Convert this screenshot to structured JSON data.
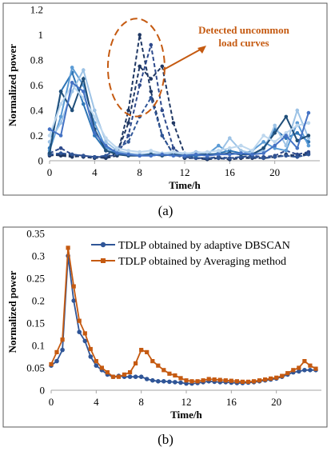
{
  "chart_data": [
    {
      "type": "line",
      "panel_caption": "(a)",
      "xlabel": "Time/h",
      "ylabel": "Normalized power",
      "xlim": [
        0,
        24
      ],
      "ylim": [
        0,
        1.2
      ],
      "xticks": [
        0,
        4,
        8,
        12,
        16,
        20
      ],
      "yticks": [
        0,
        0.2,
        0.4,
        0.6,
        0.8,
        1.0,
        1.2
      ],
      "ytick_labels": [
        "0",
        "0.2",
        "0.4",
        "0.6",
        "0.8",
        "1",
        "1.2"
      ],
      "grid": false,
      "annotation": {
        "text_line1": "Detected uncommon",
        "text_line2": "load curves",
        "color": "#C55A11",
        "circle_center": [
          7.7,
          0.74
        ],
        "circle_radius_x": 4.2,
        "circle_radius_y": 0.37
      },
      "series": [
        {
          "style": "dashed",
          "color": "#1F3864",
          "values": [
            0.05,
            0.04,
            0.03,
            0.04,
            0.03,
            0.02,
            0.04,
            0.4,
            1.0,
            0.55,
            0.2,
            0.05,
            0.02,
            0.02,
            0.01,
            0.02,
            0.01,
            0.02,
            0.03,
            0.02,
            0.03,
            0.05,
            0.04,
            0.06
          ]
        },
        {
          "style": "dashed",
          "color": "#2E4A8C",
          "values": [
            0.06,
            0.1,
            0.05,
            0.04,
            0.03,
            0.03,
            0.05,
            0.2,
            0.6,
            0.92,
            0.4,
            0.1,
            0.03,
            0.02,
            0.02,
            0.03,
            0.02,
            0.03,
            0.04,
            0.03,
            0.04,
            0.08,
            0.05,
            0.07
          ]
        },
        {
          "style": "dashed",
          "color": "#203864",
          "values": [
            0.04,
            0.05,
            0.04,
            0.03,
            0.02,
            0.03,
            0.06,
            0.3,
            0.75,
            0.65,
            0.75,
            0.3,
            0.05,
            0.02,
            0.02,
            0.02,
            0.01,
            0.02,
            0.02,
            0.02,
            0.03,
            0.04,
            0.03,
            0.05
          ]
        },
        {
          "style": "dashed",
          "color": "#2F5597",
          "values": [
            0.05,
            0.06,
            0.05,
            0.04,
            0.03,
            0.04,
            0.1,
            0.15,
            0.35,
            0.5,
            0.2,
            0.05,
            0.03,
            0.02,
            0.02,
            0.02,
            0.02,
            0.03,
            0.03,
            0.02,
            0.03,
            0.04,
            0.03,
            0.05
          ]
        },
        {
          "style": "solid",
          "color": "#2E75B6",
          "values": [
            0.1,
            0.55,
            0.7,
            0.45,
            0.2,
            0.08,
            0.06,
            0.05,
            0.05,
            0.04,
            0.05,
            0.05,
            0.04,
            0.04,
            0.05,
            0.06,
            0.08,
            0.06,
            0.05,
            0.1,
            0.25,
            0.18,
            0.22,
            0.15
          ]
        },
        {
          "style": "solid",
          "color": "#5B9BD5",
          "values": [
            0.08,
            0.35,
            0.74,
            0.6,
            0.3,
            0.1,
            0.07,
            0.05,
            0.04,
            0.05,
            0.05,
            0.04,
            0.05,
            0.06,
            0.05,
            0.12,
            0.06,
            0.05,
            0.08,
            0.15,
            0.1,
            0.08,
            0.3,
            0.12
          ]
        },
        {
          "style": "solid",
          "color": "#9DC3E6",
          "values": [
            0.15,
            0.3,
            0.55,
            0.72,
            0.4,
            0.15,
            0.08,
            0.06,
            0.05,
            0.06,
            0.05,
            0.06,
            0.05,
            0.07,
            0.06,
            0.05,
            0.18,
            0.08,
            0.06,
            0.08,
            0.28,
            0.12,
            0.4,
            0.18
          ]
        },
        {
          "style": "solid",
          "color": "#1F4E79",
          "values": [
            0.06,
            0.55,
            0.4,
            0.65,
            0.25,
            0.08,
            0.05,
            0.04,
            0.04,
            0.05,
            0.04,
            0.05,
            0.04,
            0.05,
            0.05,
            0.05,
            0.06,
            0.05,
            0.05,
            0.1,
            0.22,
            0.35,
            0.16,
            0.2
          ]
        },
        {
          "style": "solid",
          "color": "#BDD7EE",
          "values": [
            0.2,
            0.45,
            0.6,
            0.5,
            0.35,
            0.18,
            0.1,
            0.08,
            0.07,
            0.08,
            0.06,
            0.07,
            0.06,
            0.06,
            0.07,
            0.08,
            0.1,
            0.12,
            0.08,
            0.2,
            0.15,
            0.22,
            0.28,
            0.3
          ]
        },
        {
          "style": "solid",
          "color": "#4472C4",
          "values": [
            0.25,
            0.2,
            0.62,
            0.55,
            0.22,
            0.12,
            0.06,
            0.05,
            0.04,
            0.04,
            0.05,
            0.04,
            0.04,
            0.05,
            0.04,
            0.05,
            0.05,
            0.06,
            0.05,
            0.06,
            0.12,
            0.2,
            0.1,
            0.38
          ]
        }
      ]
    },
    {
      "type": "line",
      "panel_caption": "(b)",
      "xlabel": "Time/h",
      "ylabel": "Normalized power",
      "xlim": [
        0,
        24
      ],
      "ylim": [
        0,
        0.35
      ],
      "xticks": [
        0,
        4,
        8,
        12,
        16,
        20
      ],
      "yticks": [
        0,
        0.05,
        0.1,
        0.15,
        0.2,
        0.25,
        0.3,
        0.35
      ],
      "ytick_labels": [
        "0",
        "0.05",
        "0.1",
        "0.15",
        "0.2",
        "0.25",
        "0.3",
        "0.35"
      ],
      "grid": false,
      "legend": "top-right",
      "x": [
        0,
        0.5,
        1,
        1.5,
        2,
        2.5,
        3,
        3.5,
        4,
        4.5,
        5,
        5.5,
        6,
        6.5,
        7,
        7.5,
        8,
        8.5,
        9,
        9.5,
        10,
        10.5,
        11,
        11.5,
        12,
        12.5,
        13,
        13.5,
        14,
        14.5,
        15,
        15.5,
        16,
        16.5,
        17,
        17.5,
        18,
        18.5,
        19,
        19.5,
        20,
        20.5,
        21,
        21.5,
        22,
        22.5,
        23,
        23.5
      ],
      "series": [
        {
          "name": "TDLP obtained by adaptive DBSCAN",
          "color": "#2F5597",
          "marker": "circle",
          "values": [
            0.055,
            0.065,
            0.09,
            0.3,
            0.2,
            0.13,
            0.11,
            0.075,
            0.055,
            0.045,
            0.035,
            0.03,
            0.032,
            0.03,
            0.03,
            0.03,
            0.03,
            0.025,
            0.022,
            0.02,
            0.02,
            0.019,
            0.018,
            0.017,
            0.015,
            0.015,
            0.016,
            0.018,
            0.02,
            0.019,
            0.018,
            0.018,
            0.017,
            0.016,
            0.016,
            0.017,
            0.018,
            0.02,
            0.022,
            0.024,
            0.026,
            0.03,
            0.035,
            0.04,
            0.042,
            0.045,
            0.045,
            0.045
          ]
        },
        {
          "name": "TDLP obtained by Averaging method",
          "color": "#C55A11",
          "marker": "square",
          "values": [
            0.058,
            0.085,
            0.113,
            0.318,
            0.232,
            0.155,
            0.127,
            0.092,
            0.065,
            0.05,
            0.04,
            0.03,
            0.03,
            0.035,
            0.04,
            0.06,
            0.09,
            0.085,
            0.065,
            0.055,
            0.045,
            0.037,
            0.033,
            0.027,
            0.022,
            0.02,
            0.02,
            0.022,
            0.025,
            0.024,
            0.023,
            0.022,
            0.021,
            0.02,
            0.019,
            0.019,
            0.02,
            0.022,
            0.024,
            0.026,
            0.028,
            0.032,
            0.038,
            0.045,
            0.05,
            0.065,
            0.055,
            0.048
          ]
        }
      ]
    }
  ]
}
